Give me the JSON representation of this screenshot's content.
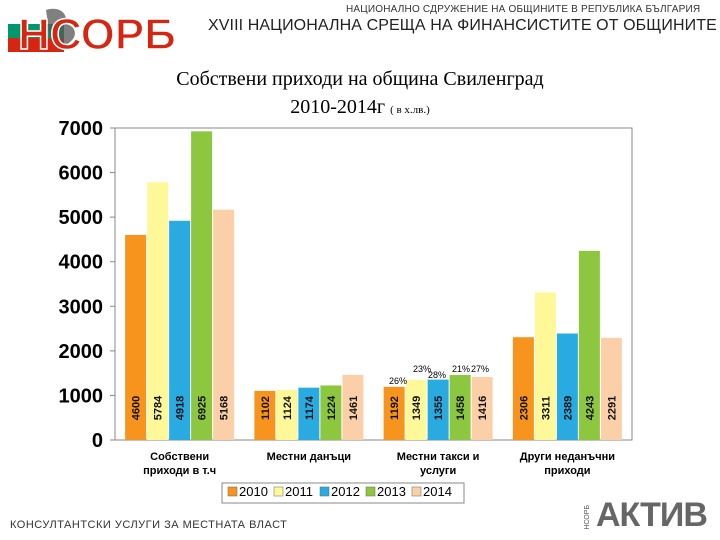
{
  "header": {
    "logo_text": "НСОРБ",
    "organization": "НАЦИОНАЛНО СДРУЖЕНИЕ НА ОБЩИНИТЕ В РЕПУБЛИКА БЪЛГАРИЯ",
    "event": "XVIII НАЦИОНАЛНА СРЕЩА НА ФИНАНСИСТИТЕ ОТ ОБЩИНИТЕ"
  },
  "footer": {
    "tagline": "КОНСУЛТАНТСКИ УСЛУГИ ЗА МЕСТНАТА ВЛАСТ",
    "sub": "НСОРБ",
    "brand": "АКТИВ"
  },
  "colors": {
    "2010": "#f7941d",
    "2011": "#fff899",
    "2012": "#29abe2",
    "2013": "#8dc63f",
    "2014": "#fbd0a8"
  },
  "chart_data": {
    "type": "bar",
    "title": "Собствени приходи на община Свиленград",
    "subtitle": "2010-2014г",
    "unit_note": "( в х.лв.)",
    "categories": [
      "Собствени приходи в т.ч",
      "Местни данъци",
      "Местни такси и услуги",
      "Други неданъчни приходи"
    ],
    "series": [
      {
        "name": "2010",
        "values": [
          4600,
          1102,
          1192,
          2306
        ]
      },
      {
        "name": "2011",
        "values": [
          5784,
          1124,
          1349,
          3311
        ]
      },
      {
        "name": "2012",
        "values": [
          4918,
          1174,
          1355,
          2389
        ]
      },
      {
        "name": "2013",
        "values": [
          6925,
          1224,
          1458,
          4243
        ]
      },
      {
        "name": "2014",
        "values": [
          5168,
          1461,
          1416,
          2291
        ]
      }
    ],
    "y_ticks": [
      "0",
      "1000",
      "2000",
      "3000",
      "4000",
      "5000",
      "6000",
      "7000"
    ],
    "ylim": [
      0,
      7000
    ],
    "annotations": [
      "26%",
      "23%",
      "28%",
      "21%",
      "27%"
    ],
    "legend_position": "bottom",
    "grid": false
  }
}
